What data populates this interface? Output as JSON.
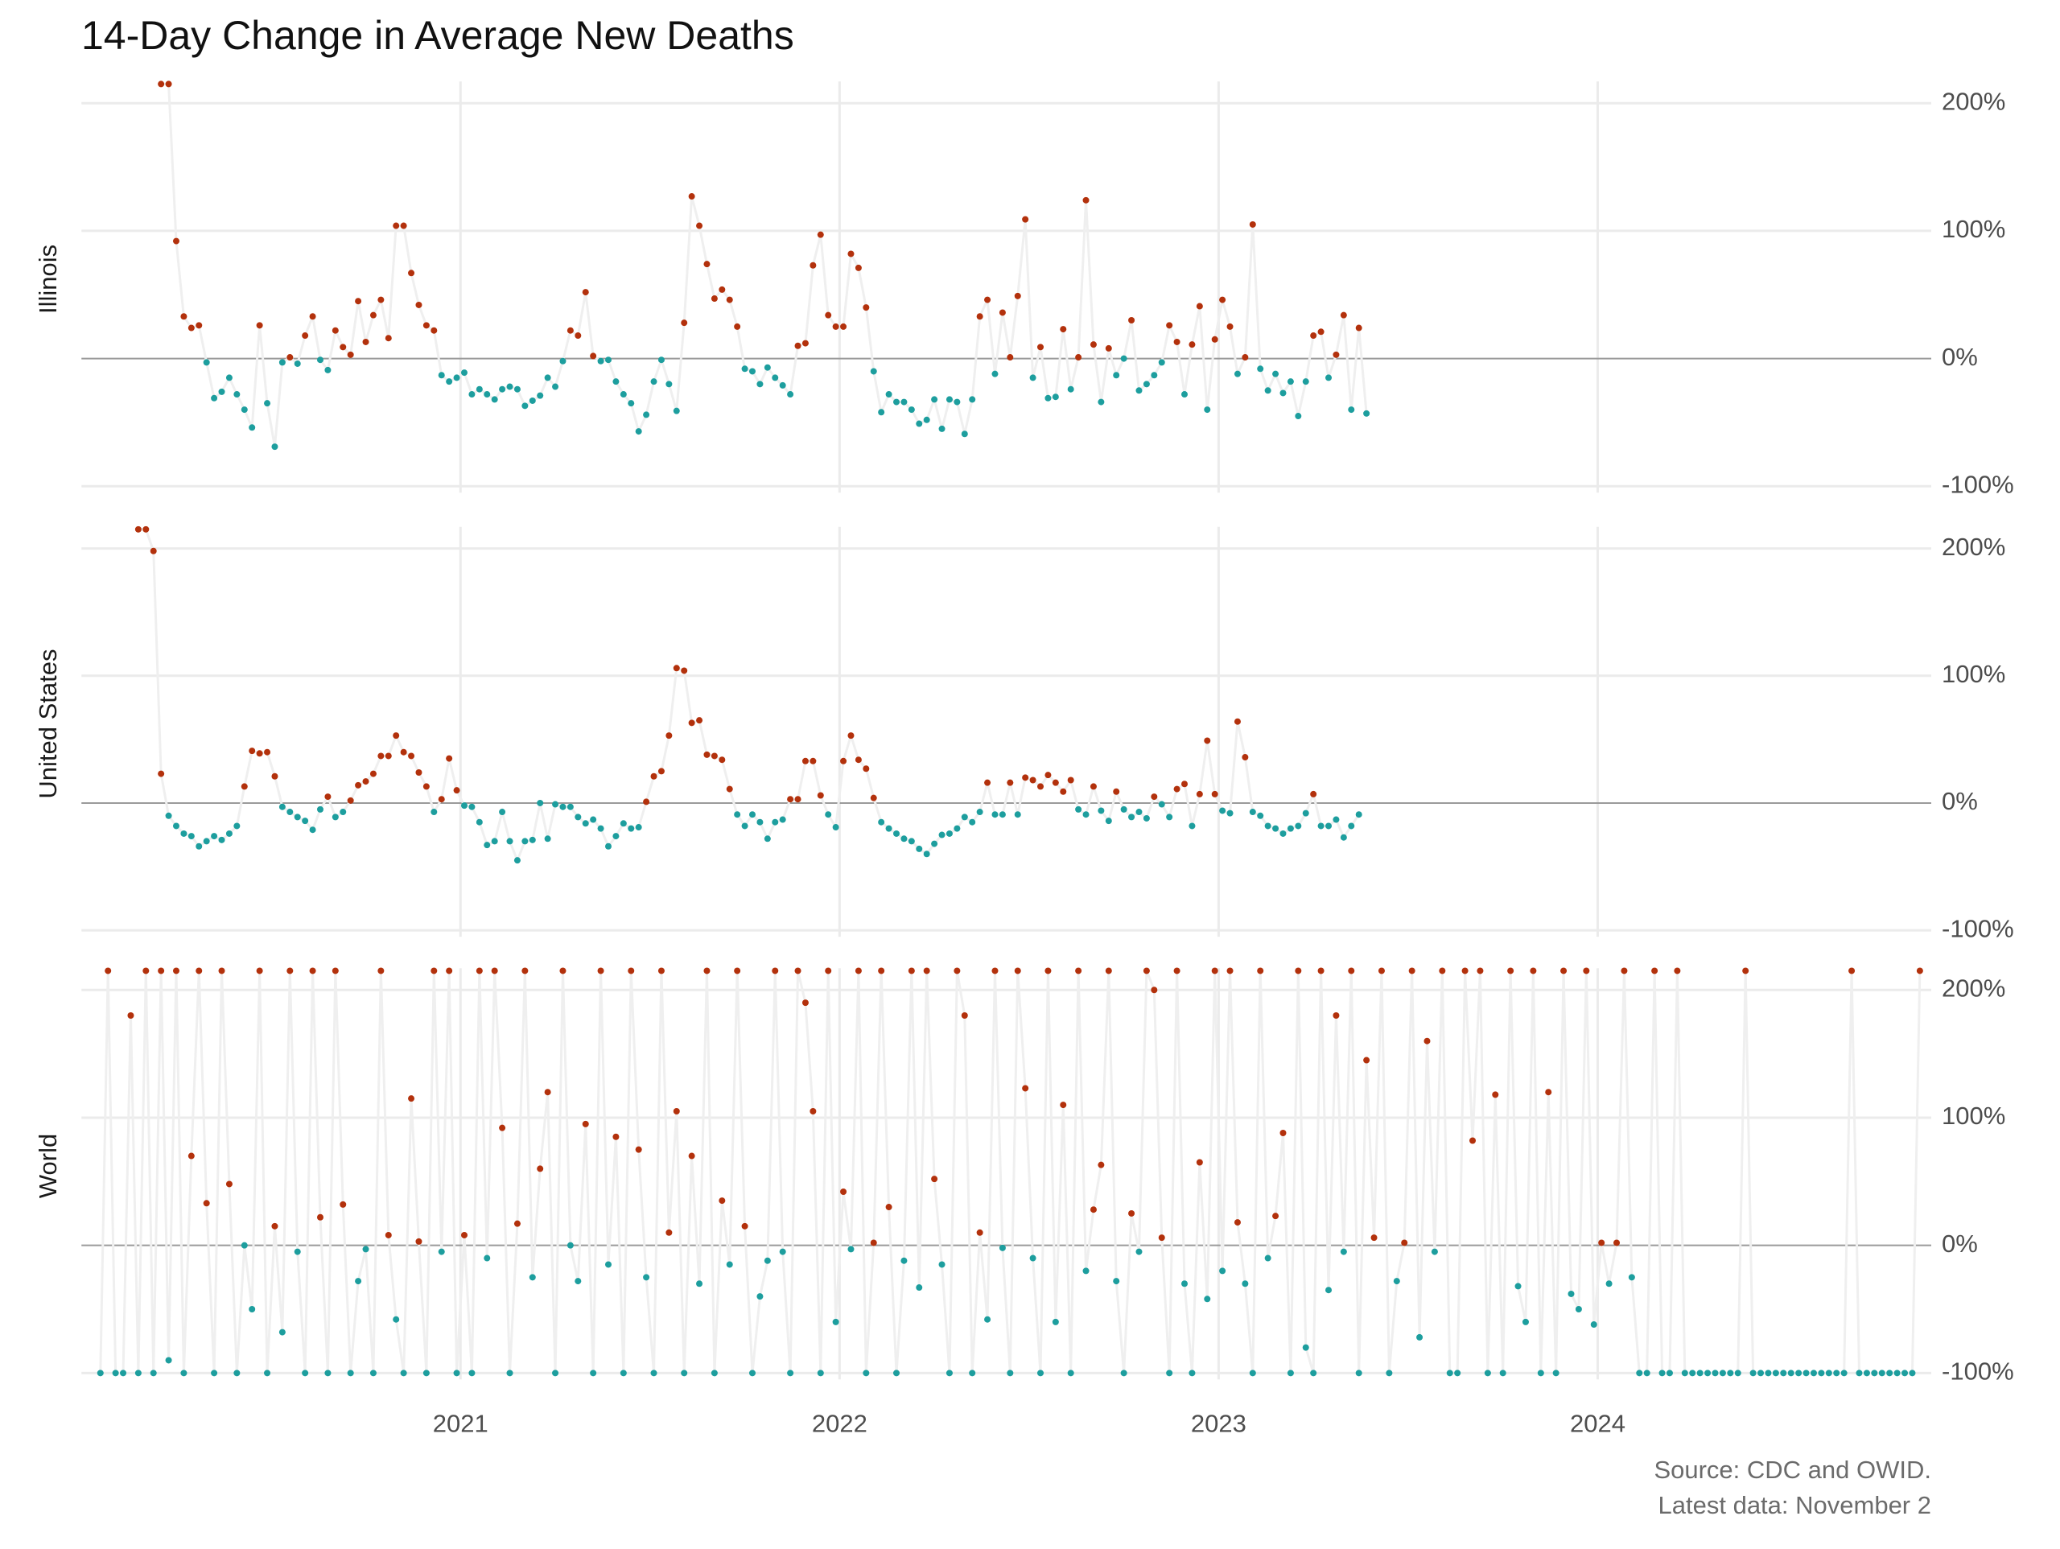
{
  "chart_data": {
    "type": "scatter",
    "title": "14-Day Change in Average New Deaths",
    "caption": [
      "Source: CDC and OWID.",
      "Latest data: November 2"
    ],
    "x": [
      2020.05,
      2020.07,
      2020.09,
      2020.11,
      2020.13,
      2020.15,
      2020.17,
      2020.19,
      2020.21,
      2020.23,
      2020.25,
      2020.27,
      2020.29,
      2020.31,
      2020.33,
      2020.35,
      2020.37,
      2020.39,
      2020.41,
      2020.43,
      2020.45,
      2020.47,
      2020.49,
      2020.51,
      2020.53,
      2020.55,
      2020.57,
      2020.59,
      2020.61,
      2020.63,
      2020.65,
      2020.67,
      2020.69,
      2020.71,
      2020.73,
      2020.75,
      2020.77,
      2020.79,
      2020.81,
      2020.83,
      2020.85,
      2020.87,
      2020.89,
      2020.91,
      2020.93,
      2020.95,
      2020.97,
      2020.99,
      2021.01,
      2021.03,
      2021.05,
      2021.07,
      2021.09,
      2021.11,
      2021.13,
      2021.15,
      2021.17,
      2021.19,
      2021.21,
      2021.23,
      2021.25,
      2021.27,
      2021.29,
      2021.31,
      2021.33,
      2021.35,
      2021.37,
      2021.39,
      2021.41,
      2021.43,
      2021.45,
      2021.47,
      2021.49,
      2021.51,
      2021.53,
      2021.55,
      2021.57,
      2021.59,
      2021.61,
      2021.63,
      2021.65,
      2021.67,
      2021.69,
      2021.71,
      2021.73,
      2021.75,
      2021.77,
      2021.79,
      2021.81,
      2021.83,
      2021.85,
      2021.87,
      2021.89,
      2021.91,
      2021.93,
      2021.95,
      2021.97,
      2021.99,
      2022.01,
      2022.03,
      2022.05,
      2022.07,
      2022.09,
      2022.11,
      2022.13,
      2022.15,
      2022.17,
      2022.19,
      2022.21,
      2022.23,
      2022.25,
      2022.27,
      2022.29,
      2022.31,
      2022.33,
      2022.35,
      2022.37,
      2022.39,
      2022.41,
      2022.43,
      2022.45,
      2022.47,
      2022.49,
      2022.51,
      2022.53,
      2022.55,
      2022.57,
      2022.59,
      2022.61,
      2022.63,
      2022.65,
      2022.67,
      2022.69,
      2022.71,
      2022.73,
      2022.75,
      2022.77,
      2022.79,
      2022.81,
      2022.83,
      2022.85,
      2022.87,
      2022.89,
      2022.91,
      2022.93,
      2022.95,
      2022.97,
      2022.99,
      2023.01,
      2023.03,
      2023.05,
      2023.07,
      2023.09,
      2023.11,
      2023.13,
      2023.15,
      2023.17,
      2023.19,
      2023.21,
      2023.23,
      2023.25,
      2023.27,
      2023.29,
      2023.31,
      2023.33,
      2023.35,
      2023.37,
      2023.39,
      2023.41,
      2023.43,
      2023.45,
      2023.47,
      2023.49,
      2023.51,
      2023.53,
      2023.55,
      2023.57,
      2023.59,
      2023.61,
      2023.63,
      2023.65,
      2023.67,
      2023.69,
      2023.71,
      2023.73,
      2023.75,
      2023.77,
      2023.79,
      2023.81,
      2023.83,
      2023.85,
      2023.87,
      2023.89,
      2023.91,
      2023.93,
      2023.95,
      2023.97,
      2023.99,
      2024.01,
      2024.03,
      2024.05,
      2024.07,
      2024.09,
      2024.11,
      2024.13,
      2024.15,
      2024.17,
      2024.19,
      2024.21,
      2024.23,
      2024.25,
      2024.27,
      2024.29,
      2024.31,
      2024.33,
      2024.35,
      2024.37,
      2024.39,
      2024.41,
      2024.43,
      2024.45,
      2024.47,
      2024.49,
      2024.51,
      2024.53,
      2024.55,
      2024.57,
      2024.59,
      2024.61,
      2024.63,
      2024.65,
      2024.67,
      2024.69,
      2024.71,
      2024.73,
      2024.75,
      2024.77,
      2024.79,
      2024.81,
      2024.83,
      2024.85
    ],
    "xlim": [
      2020.0,
      2024.88
    ],
    "xticks": [
      2021,
      2022,
      2023,
      2024
    ],
    "ylim": [
      -105,
      217
    ],
    "yticks": [
      {
        "value": -100,
        "label": "-100%"
      },
      {
        "value": 0,
        "label": "0%"
      },
      {
        "value": 100,
        "label": "100%"
      },
      {
        "value": 200,
        "label": "200%"
      }
    ],
    "grid": true,
    "positive_color": "#b3310c",
    "negative_color": "#1d9e9e",
    "line_color": "#efefef",
    "series": [
      {
        "name": "Illinois",
        "values": [
          null,
          null,
          null,
          null,
          null,
          null,
          null,
          null,
          215,
          215,
          92,
          33,
          24,
          26,
          -3,
          -31,
          -26,
          -15,
          -28,
          -40,
          -54,
          26,
          -35,
          -69,
          -3,
          1,
          -4,
          18,
          33,
          -1,
          -9,
          22,
          9,
          3,
          45,
          13,
          34,
          46,
          16,
          104,
          104,
          67,
          42,
          26,
          22,
          -13,
          -18,
          -15,
          -11,
          -28,
          -24,
          -28,
          -32,
          -24,
          -22,
          -24,
          -37,
          -33,
          -29,
          -15,
          -22,
          -2,
          22,
          18,
          52,
          2,
          -2,
          -1,
          -18,
          -28,
          -35,
          -57,
          -44,
          -18,
          -1,
          -20,
          -41,
          28,
          127,
          104,
          74,
          47,
          54,
          46,
          25,
          -8,
          -10,
          -20,
          -7,
          -15,
          -21,
          -28,
          10,
          12,
          73,
          97,
          34,
          25,
          25,
          82,
          71,
          40,
          -10,
          -42,
          -28,
          -34,
          -34,
          -40,
          -51,
          -48,
          -32,
          -55,
          -32,
          -34,
          -59,
          -32,
          33,
          46,
          -12,
          36,
          1,
          49,
          109,
          -15,
          9,
          -31,
          -30,
          23,
          -24,
          1,
          124,
          11,
          -34,
          8,
          -13,
          0,
          30,
          -25,
          -20,
          -13,
          -3,
          26,
          13,
          -28,
          11,
          41,
          -40,
          15,
          46,
          25,
          -12,
          1,
          105,
          -8,
          -25,
          -12,
          -27,
          -18,
          -45,
          -18,
          18,
          21,
          -15,
          3,
          34,
          -40,
          24,
          -43,
          null,
          null,
          null,
          null,
          null,
          null,
          null,
          null,
          null,
          null,
          null,
          null,
          null,
          null,
          null,
          null,
          null,
          null,
          null,
          null,
          null,
          null,
          null,
          null,
          null,
          null,
          null,
          null,
          null,
          null,
          null,
          null,
          null,
          null,
          null,
          null,
          null,
          null,
          null,
          null,
          null,
          null,
          null,
          null,
          null,
          null,
          null,
          null,
          null,
          null,
          null,
          null,
          null,
          null,
          null,
          null,
          null,
          null,
          null,
          null,
          null,
          null,
          null,
          null,
          null,
          null,
          null,
          null,
          null,
          null,
          null,
          null,
          null
        ]
      },
      {
        "name": "United States",
        "values": [
          null,
          null,
          null,
          null,
          null,
          215,
          215,
          198,
          23,
          -10,
          -18,
          -24,
          -26,
          -34,
          -30,
          -26,
          -29,
          -24,
          -18,
          13,
          41,
          39,
          40,
          21,
          -3,
          -7,
          -11,
          -14,
          -21,
          -5,
          5,
          -11,
          -7,
          2,
          14,
          17,
          23,
          37,
          37,
          53,
          40,
          37,
          24,
          13,
          -7,
          3,
          35,
          10,
          -2,
          -3,
          -15,
          -33,
          -30,
          -7,
          -30,
          -45,
          -30,
          -29,
          0,
          -28,
          -1,
          -3,
          -3,
          -11,
          -16,
          -13,
          -20,
          -34,
          -26,
          -16,
          -20,
          -19,
          1,
          21,
          25,
          53,
          106,
          104,
          63,
          65,
          38,
          37,
          34,
          11,
          -9,
          -18,
          -9,
          -15,
          -28,
          -15,
          -13,
          3,
          3,
          33,
          33,
          6,
          -9,
          -19,
          33,
          53,
          34,
          27,
          4,
          -15,
          -20,
          -24,
          -28,
          -30,
          -36,
          -40,
          -32,
          -25,
          -24,
          -20,
          -11,
          -15,
          -7,
          16,
          -9,
          -9,
          16,
          -9,
          20,
          18,
          13,
          22,
          16,
          9,
          18,
          -5,
          -9,
          13,
          -6,
          -14,
          9,
          -5,
          -11,
          -7,
          -12,
          5,
          -1,
          -11,
          11,
          15,
          -18,
          7,
          49,
          7,
          -6,
          -8,
          64,
          36,
          -7,
          -10,
          -18,
          -20,
          -24,
          -20,
          -18,
          -8,
          7,
          -18,
          -18,
          -13,
          -27,
          -18,
          -9,
          null,
          null,
          null,
          null,
          null,
          null,
          null,
          null,
          null,
          null,
          null,
          null,
          null,
          null,
          null,
          null,
          null,
          null,
          null,
          null,
          null,
          null,
          null,
          null,
          null,
          null,
          null,
          null,
          null,
          null,
          null,
          null,
          null,
          null,
          null,
          null,
          null,
          null,
          null,
          null,
          null,
          null,
          null,
          null,
          null,
          null,
          null,
          null,
          null,
          null,
          null,
          null,
          null,
          null,
          null,
          null,
          null,
          null,
          null,
          null,
          null,
          null,
          null,
          null,
          null,
          null,
          null,
          null,
          null,
          null,
          null,
          null,
          null,
          null
        ]
      },
      {
        "name": "World",
        "values": [
          -100,
          215,
          -100,
          -100,
          180,
          -100,
          215,
          -100,
          215,
          -90,
          215,
          -100,
          70,
          215,
          33,
          -100,
          215,
          48,
          -100,
          0,
          -50,
          215,
          -100,
          15,
          -68,
          215,
          -5,
          -100,
          215,
          22,
          -100,
          215,
          32,
          -100,
          -28,
          -3,
          -100,
          215,
          8,
          -58,
          -100,
          115,
          3,
          -100,
          215,
          -5,
          215,
          -100,
          8,
          -100,
          215,
          -10,
          215,
          92,
          -100,
          17,
          215,
          -25,
          60,
          120,
          -100,
          215,
          0,
          -28,
          95,
          -100,
          215,
          -15,
          85,
          -100,
          215,
          75,
          -25,
          -100,
          215,
          10,
          105,
          -100,
          70,
          -30,
          215,
          -100,
          35,
          -15,
          215,
          15,
          -100,
          -40,
          -12,
          215,
          -5,
          -100,
          215,
          190,
          105,
          -100,
          215,
          -60,
          42,
          -3,
          215,
          -100,
          2,
          215,
          30,
          -100,
          -12,
          215,
          -33,
          215,
          52,
          -15,
          -100,
          215,
          180,
          -100,
          10,
          -58,
          215,
          -2,
          -100,
          215,
          123,
          -10,
          -100,
          215,
          -60,
          110,
          -100,
          215,
          -20,
          28,
          63,
          215,
          -28,
          -100,
          25,
          -5,
          215,
          200,
          6,
          -100,
          215,
          -30,
          -100,
          65,
          -42,
          215,
          -20,
          215,
          18,
          -30,
          -100,
          215,
          -10,
          23,
          88,
          -100,
          215,
          -80,
          -100,
          215,
          -35,
          180,
          -5,
          215,
          -100,
          145,
          6,
          215,
          -100,
          -28,
          2,
          215,
          -72,
          160,
          -5,
          215,
          -100,
          -100,
          215,
          82,
          215,
          -100,
          118,
          -100,
          215,
          -32,
          -60,
          215,
          -100,
          120,
          -100,
          215,
          -38,
          -50,
          215,
          -62,
          2,
          -30,
          2,
          215,
          -25,
          -100,
          -100,
          215,
          -100,
          -100,
          215,
          -100,
          -100,
          -100,
          -100,
          -100,
          -100,
          -100,
          -100,
          215,
          -100,
          -100,
          -100,
          -100,
          -100,
          -100,
          -100,
          -100,
          -100,
          -100,
          -100,
          -100,
          -100,
          215,
          -100,
          -100,
          -100,
          -100,
          -100,
          -100,
          -100,
          -100,
          215
        ]
      }
    ]
  }
}
